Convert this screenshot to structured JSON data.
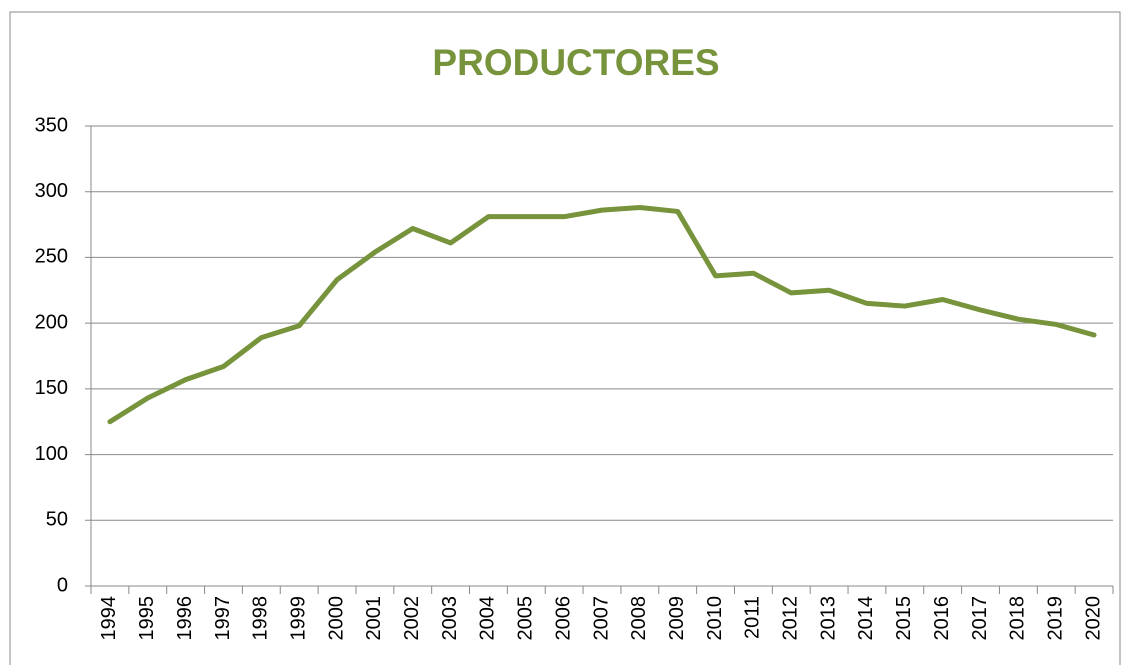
{
  "chart_data": {
    "type": "line",
    "title": "PRODUCTORES",
    "categories": [
      "1994",
      "1995",
      "1996",
      "1997",
      "1998",
      "1999",
      "2000",
      "2001",
      "2002",
      "2003",
      "2004",
      "2005",
      "2006",
      "2007",
      "2008",
      "2009",
      "2010",
      "2011",
      "2012",
      "2013",
      "2014",
      "2015",
      "2016",
      "2017",
      "2018",
      "2019",
      "2020"
    ],
    "series": [
      {
        "name": "Productores",
        "color": "#77933c",
        "values": [
          125,
          143,
          157,
          167,
          189,
          198,
          233,
          254,
          272,
          261,
          281,
          281,
          281,
          286,
          288,
          285,
          236,
          238,
          223,
          225,
          215,
          213,
          218,
          210,
          203,
          199,
          191
        ]
      }
    ],
    "ylim": [
      0,
      350
    ],
    "yticks": [
      0,
      50,
      100,
      150,
      200,
      250,
      300,
      350
    ],
    "grid": true
  }
}
